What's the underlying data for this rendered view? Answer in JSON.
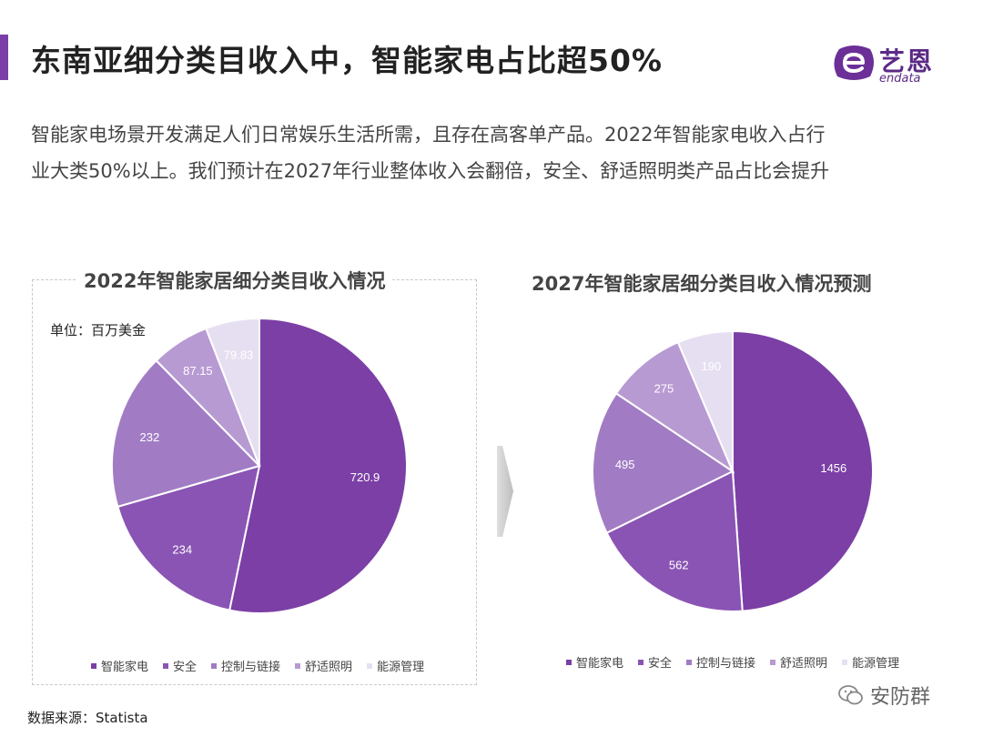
{
  "header": {
    "title": "东南亚细分类目收入中，智能家电占比超50%",
    "logo_cn": "艺恩",
    "logo_en": "endata"
  },
  "description": {
    "line1": "智能家电场景开发满足人们日常娱乐生活所需，且存在高客单产品。2022年智能家电收入占行",
    "line2": "业大类50%以上。我们预计在2027年行业整体收入会翻倍，安全、舒适照明类产品占比会提升"
  },
  "footer": {
    "source": "数据来源：Statista",
    "watermark": "安防群"
  },
  "colors": [
    "#7b3fa6",
    "#8a54b4",
    "#a17cc4",
    "#b89ad3",
    "#e6dff1"
  ],
  "chart_data": [
    {
      "type": "pie",
      "title": "2022年智能家居细分类目收入情况",
      "unit_label": "单位：百万美金",
      "categories": [
        "智能家电",
        "安全",
        "控制与链接",
        "舒适照明",
        "能源管理"
      ],
      "values": [
        720.9,
        234,
        232,
        87.15,
        79.83
      ],
      "value_labels": [
        "720.9",
        "234",
        "232",
        "87.15",
        "79.83"
      ],
      "legend_position": "bottom"
    },
    {
      "type": "pie",
      "title": "2027年智能家居细分类目收入情况预测",
      "categories": [
        "智能家电",
        "安全",
        "控制与链接",
        "舒适照明",
        "能源管理"
      ],
      "values": [
        1456,
        562,
        495,
        275,
        190
      ],
      "value_labels": [
        "1456",
        "562",
        "495",
        "275",
        "190"
      ],
      "legend_position": "bottom"
    }
  ]
}
